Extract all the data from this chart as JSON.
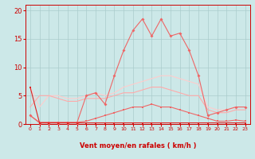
{
  "x": [
    0,
    1,
    2,
    3,
    4,
    5,
    6,
    7,
    8,
    9,
    10,
    11,
    12,
    13,
    14,
    15,
    16,
    17,
    18,
    19,
    20,
    21,
    22,
    23
  ],
  "line_rafales_max": [
    1.5,
    0.2,
    0.2,
    0.2,
    0.2,
    0.2,
    5.0,
    5.5,
    3.5,
    8.5,
    13.0,
    16.5,
    18.5,
    15.5,
    18.5,
    15.5,
    16.0,
    13.0,
    8.5,
    1.5,
    2.0,
    2.5,
    3.0,
    3.0
  ],
  "line_avg_high": [
    6.5,
    3.0,
    5.0,
    5.0,
    4.5,
    4.5,
    5.0,
    5.5,
    5.0,
    5.5,
    6.5,
    7.0,
    7.5,
    8.0,
    8.5,
    8.5,
    8.0,
    7.5,
    7.0,
    3.0,
    2.5,
    2.5,
    3.0,
    3.0
  ],
  "line_avg_low": [
    3.0,
    5.0,
    5.0,
    4.5,
    4.0,
    4.0,
    4.5,
    4.5,
    4.5,
    5.0,
    5.5,
    5.5,
    6.0,
    6.5,
    6.5,
    6.0,
    5.5,
    5.0,
    5.0,
    2.5,
    2.0,
    2.0,
    2.5,
    2.5
  ],
  "line_med": [
    1.5,
    0.3,
    0.3,
    0.3,
    0.3,
    0.3,
    0.5,
    1.0,
    1.5,
    2.0,
    2.5,
    3.0,
    3.0,
    3.5,
    3.0,
    3.0,
    2.5,
    2.0,
    1.5,
    1.0,
    0.5,
    0.5,
    0.7,
    0.5
  ],
  "line_min": [
    6.5,
    0.2,
    0.2,
    0.2,
    0.2,
    0.2,
    0.2,
    0.2,
    0.2,
    0.2,
    0.2,
    0.2,
    0.2,
    0.2,
    0.2,
    0.2,
    0.2,
    0.2,
    0.2,
    0.2,
    0.2,
    0.2,
    0.2,
    0.2
  ],
  "arrows": [
    "↗",
    "↑",
    "←",
    "←",
    "←",
    "←",
    "←",
    "←",
    "←",
    "←",
    "↙",
    "→",
    "↗",
    "←",
    "↗",
    "↗",
    "↑",
    "↗",
    "↗",
    "↗",
    "↗",
    "↗",
    "↗",
    "↗"
  ],
  "bg_color": "#cce8e8",
  "grid_color": "#aacccc",
  "color_darkred": "#dd2222",
  "color_medred": "#ee6666",
  "color_lightpink": "#ffaaaa",
  "color_verypink": "#ffcccc",
  "color_pink2": "#ee8888",
  "axis_label_color": "#cc0000",
  "tick_color": "#cc0000",
  "xlabel": "Vent moyen/en rafales ( km/h )",
  "ylim": [
    0,
    21
  ],
  "xlim": [
    -0.5,
    23.5
  ],
  "yticks": [
    0,
    5,
    10,
    15,
    20
  ],
  "xticks": [
    0,
    1,
    2,
    3,
    4,
    5,
    6,
    7,
    8,
    9,
    10,
    11,
    12,
    13,
    14,
    15,
    16,
    17,
    18,
    19,
    20,
    21,
    22,
    23
  ]
}
